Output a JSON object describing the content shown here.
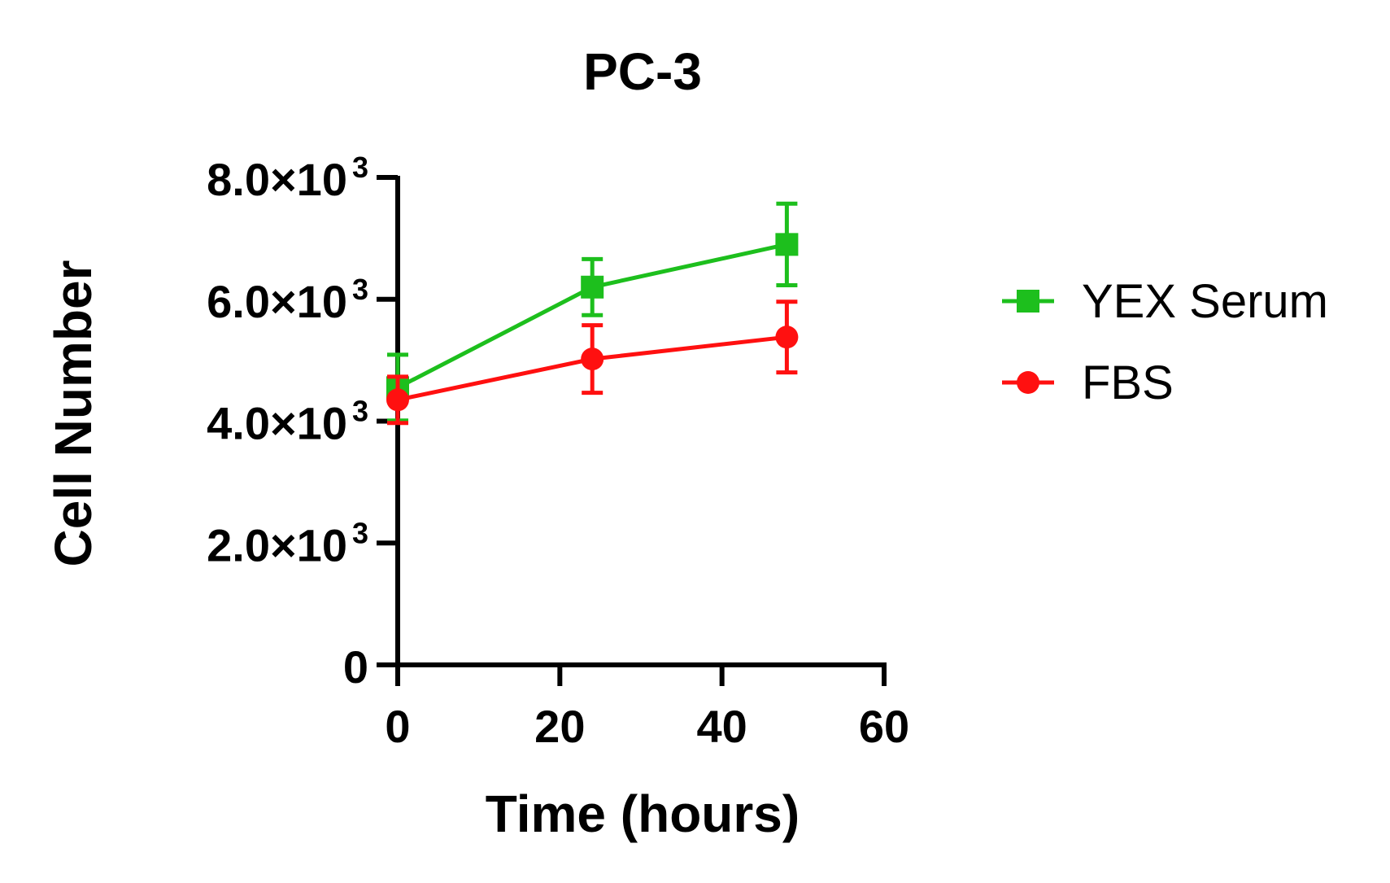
{
  "chart_data": {
    "type": "line",
    "title": "PC-3",
    "xlabel": "Time (hours)",
    "ylabel": "Cell Number",
    "xlim": [
      0,
      60
    ],
    "ylim": [
      0,
      8000
    ],
    "x_ticks": [
      0,
      20,
      40,
      60
    ],
    "x_tick_labels": [
      "0",
      "20",
      "40",
      "60"
    ],
    "y_ticks": [
      0,
      2000,
      4000,
      6000,
      8000
    ],
    "y_tick_labels": [
      {
        "mantissa": "0",
        "exp": ""
      },
      {
        "mantissa": "2.0×10",
        "exp": "3"
      },
      {
        "mantissa": "4.0×10",
        "exp": "3"
      },
      {
        "mantissa": "6.0×10",
        "exp": "3"
      },
      {
        "mantissa": "8.0×10",
        "exp": "3"
      }
    ],
    "x": [
      0,
      24,
      48
    ],
    "series": [
      {
        "name": "YEX Serum",
        "color": "#1dbf1d",
        "marker": "square",
        "values": [
          4550,
          6200,
          6900
        ],
        "error": [
          540,
          460,
          670
        ]
      },
      {
        "name": "FBS",
        "color": "#ff1010",
        "marker": "circle",
        "values": [
          4350,
          5020,
          5380
        ],
        "error": [
          380,
          555,
          580
        ]
      }
    ],
    "grid": false,
    "legend_position": "right"
  }
}
